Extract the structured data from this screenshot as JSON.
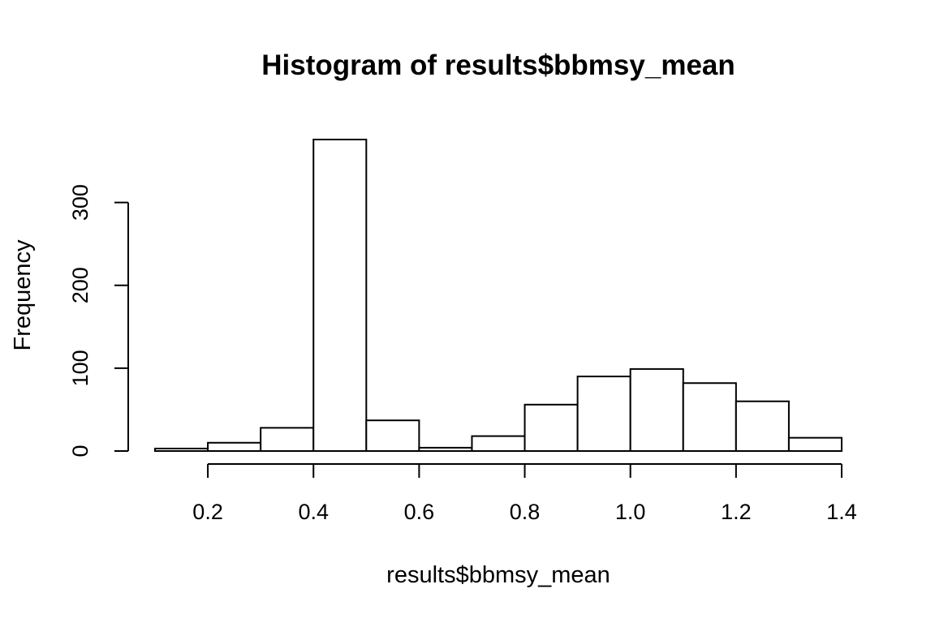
{
  "chart_data": {
    "type": "bar",
    "title": "Histogram of results$bbmsy_mean",
    "xlabel": "results$bbmsy_mean",
    "ylabel": "Frequency",
    "bins": [
      {
        "x0": 0.1,
        "x1": 0.2,
        "count": 3
      },
      {
        "x0": 0.2,
        "x1": 0.3,
        "count": 10
      },
      {
        "x0": 0.3,
        "x1": 0.4,
        "count": 28
      },
      {
        "x0": 0.4,
        "x1": 0.5,
        "count": 376
      },
      {
        "x0": 0.5,
        "x1": 0.6,
        "count": 37
      },
      {
        "x0": 0.6,
        "x1": 0.7,
        "count": 4
      },
      {
        "x0": 0.7,
        "x1": 0.8,
        "count": 18
      },
      {
        "x0": 0.8,
        "x1": 0.9,
        "count": 56
      },
      {
        "x0": 0.9,
        "x1": 1.0,
        "count": 90
      },
      {
        "x0": 1.0,
        "x1": 1.1,
        "count": 99
      },
      {
        "x0": 1.1,
        "x1": 1.2,
        "count": 82
      },
      {
        "x0": 1.2,
        "x1": 1.3,
        "count": 60
      },
      {
        "x0": 1.3,
        "x1": 1.4,
        "count": 16
      }
    ],
    "x_ticks": [
      {
        "value": 0.2,
        "label": "0.2"
      },
      {
        "value": 0.4,
        "label": "0.4"
      },
      {
        "value": 0.6,
        "label": "0.6"
      },
      {
        "value": 0.8,
        "label": "0.8"
      },
      {
        "value": 1.0,
        "label": "1.0"
      },
      {
        "value": 1.2,
        "label": "1.2"
      },
      {
        "value": 1.4,
        "label": "1.4"
      }
    ],
    "y_ticks": [
      {
        "value": 0,
        "label": "0"
      },
      {
        "value": 100,
        "label": "100"
      },
      {
        "value": 200,
        "label": "200"
      },
      {
        "value": 300,
        "label": "300"
      }
    ],
    "xlim": [
      0.1,
      1.4
    ],
    "ylim": [
      0,
      376
    ],
    "grid": false,
    "legend": "none"
  }
}
